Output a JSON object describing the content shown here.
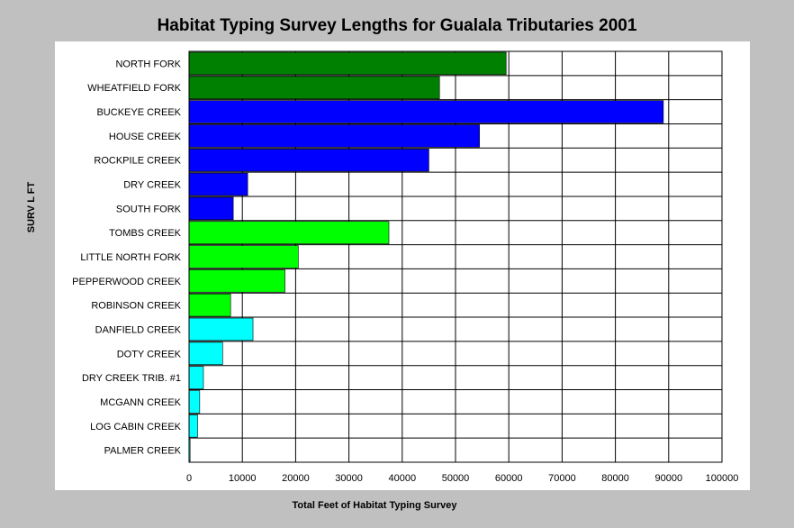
{
  "chart_data": {
    "type": "bar",
    "orientation": "horizontal",
    "title": "Habitat Typing Survey Lengths for Gualala Tributaries 2001",
    "xlabel": "Total Feet of Habitat Typing Survey",
    "ylabel": "SURV L FT",
    "xlim": [
      0,
      100000
    ],
    "xticks": [
      "0",
      "10000",
      "20000",
      "30000",
      "40000",
      "50000",
      "60000",
      "70000",
      "80000",
      "90000",
      "100000"
    ],
    "grid": true,
    "categories": [
      "NORTH FORK",
      "WHEATFIELD FORK",
      "BUCKEYE CREEK",
      "HOUSE CREEK",
      "ROCKPILE CREEK",
      "DRY CREEK",
      "SOUTH FORK",
      "TOMBS CREEK",
      "LITTLE NORTH FORK",
      "PEPPERWOOD CREEK",
      "ROBINSON CREEK",
      "DANFIELD CREEK",
      "DOTY CREEK",
      "DRY CREEK TRIB. #1",
      "MCGANN CREEK",
      "LOG CABIN CREEK",
      "PALMER CREEK"
    ],
    "values": [
      59500,
      47000,
      89000,
      54500,
      45000,
      11000,
      8300,
      37500,
      20500,
      18000,
      7800,
      12000,
      6300,
      2700,
      2000,
      1600,
      200
    ],
    "colors": [
      "#008000",
      "#008000",
      "#0000ff",
      "#0000ff",
      "#0000ff",
      "#0000ff",
      "#0000ff",
      "#00ff00",
      "#00ff00",
      "#00ff00",
      "#00ff00",
      "#00ffff",
      "#00ffff",
      "#00ffff",
      "#00ffff",
      "#00ffff",
      "#00ffff"
    ]
  }
}
